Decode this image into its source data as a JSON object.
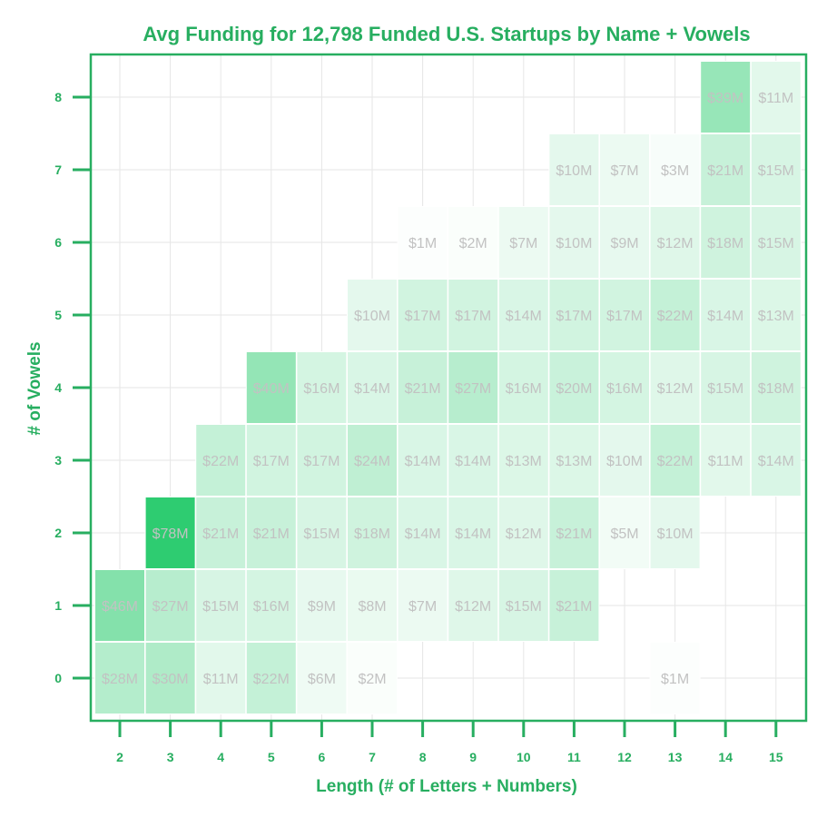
{
  "colors": {
    "accent": "#27ae60",
    "grid": "#e6e6e6",
    "cell_label": "#c2c2c2",
    "heat_low": "#ffffff",
    "heat_high": "#2ecc71",
    "background": "#ffffff"
  },
  "chart_data": {
    "type": "heatmap",
    "title": "Avg Funding for 12,798 Funded U.S. Startups by Name + Vowels",
    "xlabel": "Length (# of Letters + Numbers)",
    "ylabel": "# of Vowels",
    "x_ticks": [
      "2",
      "3",
      "4",
      "5",
      "6",
      "7",
      "8",
      "9",
      "10",
      "11",
      "12",
      "13",
      "14",
      "15"
    ],
    "y_ticks": [
      "0",
      "1",
      "2",
      "3",
      "4",
      "5",
      "6",
      "7",
      "8"
    ],
    "xlim": [
      1.5,
      15.5
    ],
    "ylim": [
      -0.5,
      8.5
    ],
    "grid": true,
    "value_unit": "$M",
    "color_scale_max": 78,
    "cells": [
      {
        "x": 2,
        "y": 0,
        "value": 28,
        "label": "$28M"
      },
      {
        "x": 3,
        "y": 0,
        "value": 30,
        "label": "$30M"
      },
      {
        "x": 4,
        "y": 0,
        "value": 11,
        "label": "$11M"
      },
      {
        "x": 5,
        "y": 0,
        "value": 22,
        "label": "$22M"
      },
      {
        "x": 6,
        "y": 0,
        "value": 6,
        "label": "$6M"
      },
      {
        "x": 7,
        "y": 0,
        "value": 2,
        "label": "$2M"
      },
      {
        "x": 13,
        "y": 0,
        "value": 1,
        "label": "$1M"
      },
      {
        "x": 2,
        "y": 1,
        "value": 46,
        "label": "$46M"
      },
      {
        "x": 3,
        "y": 1,
        "value": 27,
        "label": "$27M"
      },
      {
        "x": 4,
        "y": 1,
        "value": 15,
        "label": "$15M"
      },
      {
        "x": 5,
        "y": 1,
        "value": 16,
        "label": "$16M"
      },
      {
        "x": 6,
        "y": 1,
        "value": 9,
        "label": "$9M"
      },
      {
        "x": 7,
        "y": 1,
        "value": 8,
        "label": "$8M"
      },
      {
        "x": 8,
        "y": 1,
        "value": 7,
        "label": "$7M"
      },
      {
        "x": 9,
        "y": 1,
        "value": 12,
        "label": "$12M"
      },
      {
        "x": 10,
        "y": 1,
        "value": 15,
        "label": "$15M"
      },
      {
        "x": 11,
        "y": 1,
        "value": 21,
        "label": "$21M"
      },
      {
        "x": 3,
        "y": 2,
        "value": 78,
        "label": "$78M"
      },
      {
        "x": 4,
        "y": 2,
        "value": 21,
        "label": "$21M"
      },
      {
        "x": 5,
        "y": 2,
        "value": 21,
        "label": "$21M"
      },
      {
        "x": 6,
        "y": 2,
        "value": 15,
        "label": "$15M"
      },
      {
        "x": 7,
        "y": 2,
        "value": 18,
        "label": "$18M"
      },
      {
        "x": 8,
        "y": 2,
        "value": 14,
        "label": "$14M"
      },
      {
        "x": 9,
        "y": 2,
        "value": 14,
        "label": "$14M"
      },
      {
        "x": 10,
        "y": 2,
        "value": 12,
        "label": "$12M"
      },
      {
        "x": 11,
        "y": 2,
        "value": 21,
        "label": "$21M"
      },
      {
        "x": 12,
        "y": 2,
        "value": 5,
        "label": "$5M"
      },
      {
        "x": 13,
        "y": 2,
        "value": 10,
        "label": "$10M"
      },
      {
        "x": 4,
        "y": 3,
        "value": 22,
        "label": "$22M"
      },
      {
        "x": 5,
        "y": 3,
        "value": 17,
        "label": "$17M"
      },
      {
        "x": 6,
        "y": 3,
        "value": 17,
        "label": "$17M"
      },
      {
        "x": 7,
        "y": 3,
        "value": 24,
        "label": "$24M"
      },
      {
        "x": 8,
        "y": 3,
        "value": 14,
        "label": "$14M"
      },
      {
        "x": 9,
        "y": 3,
        "value": 14,
        "label": "$14M"
      },
      {
        "x": 10,
        "y": 3,
        "value": 13,
        "label": "$13M"
      },
      {
        "x": 11,
        "y": 3,
        "value": 13,
        "label": "$13M"
      },
      {
        "x": 12,
        "y": 3,
        "value": 10,
        "label": "$10M"
      },
      {
        "x": 13,
        "y": 3,
        "value": 22,
        "label": "$22M"
      },
      {
        "x": 14,
        "y": 3,
        "value": 11,
        "label": "$11M"
      },
      {
        "x": 15,
        "y": 3,
        "value": 14,
        "label": "$14M"
      },
      {
        "x": 5,
        "y": 4,
        "value": 40,
        "label": "$40M"
      },
      {
        "x": 6,
        "y": 4,
        "value": 16,
        "label": "$16M"
      },
      {
        "x": 7,
        "y": 4,
        "value": 14,
        "label": "$14M"
      },
      {
        "x": 8,
        "y": 4,
        "value": 21,
        "label": "$21M"
      },
      {
        "x": 9,
        "y": 4,
        "value": 27,
        "label": "$27M"
      },
      {
        "x": 10,
        "y": 4,
        "value": 16,
        "label": "$16M"
      },
      {
        "x": 11,
        "y": 4,
        "value": 20,
        "label": "$20M"
      },
      {
        "x": 12,
        "y": 4,
        "value": 16,
        "label": "$16M"
      },
      {
        "x": 13,
        "y": 4,
        "value": 12,
        "label": "$12M"
      },
      {
        "x": 14,
        "y": 4,
        "value": 15,
        "label": "$15M"
      },
      {
        "x": 15,
        "y": 4,
        "value": 18,
        "label": "$18M"
      },
      {
        "x": 7,
        "y": 5,
        "value": 10,
        "label": "$10M"
      },
      {
        "x": 8,
        "y": 5,
        "value": 17,
        "label": "$17M"
      },
      {
        "x": 9,
        "y": 5,
        "value": 17,
        "label": "$17M"
      },
      {
        "x": 10,
        "y": 5,
        "value": 14,
        "label": "$14M"
      },
      {
        "x": 11,
        "y": 5,
        "value": 17,
        "label": "$17M"
      },
      {
        "x": 12,
        "y": 5,
        "value": 17,
        "label": "$17M"
      },
      {
        "x": 13,
        "y": 5,
        "value": 22,
        "label": "$22M"
      },
      {
        "x": 14,
        "y": 5,
        "value": 14,
        "label": "$14M"
      },
      {
        "x": 15,
        "y": 5,
        "value": 13,
        "label": "$13M"
      },
      {
        "x": 8,
        "y": 6,
        "value": 1,
        "label": "$1M"
      },
      {
        "x": 9,
        "y": 6,
        "value": 2,
        "label": "$2M"
      },
      {
        "x": 10,
        "y": 6,
        "value": 7,
        "label": "$7M"
      },
      {
        "x": 11,
        "y": 6,
        "value": 10,
        "label": "$10M"
      },
      {
        "x": 12,
        "y": 6,
        "value": 9,
        "label": "$9M"
      },
      {
        "x": 13,
        "y": 6,
        "value": 12,
        "label": "$12M"
      },
      {
        "x": 14,
        "y": 6,
        "value": 18,
        "label": "$18M"
      },
      {
        "x": 15,
        "y": 6,
        "value": 15,
        "label": "$15M"
      },
      {
        "x": 11,
        "y": 7,
        "value": 10,
        "label": "$10M"
      },
      {
        "x": 12,
        "y": 7,
        "value": 7,
        "label": "$7M"
      },
      {
        "x": 13,
        "y": 7,
        "value": 3,
        "label": "$3M"
      },
      {
        "x": 14,
        "y": 7,
        "value": 21,
        "label": "$21M"
      },
      {
        "x": 15,
        "y": 7,
        "value": 15,
        "label": "$15M"
      },
      {
        "x": 14,
        "y": 8,
        "value": 39,
        "label": "$39M"
      },
      {
        "x": 15,
        "y": 8,
        "value": 11,
        "label": "$11M"
      }
    ]
  }
}
